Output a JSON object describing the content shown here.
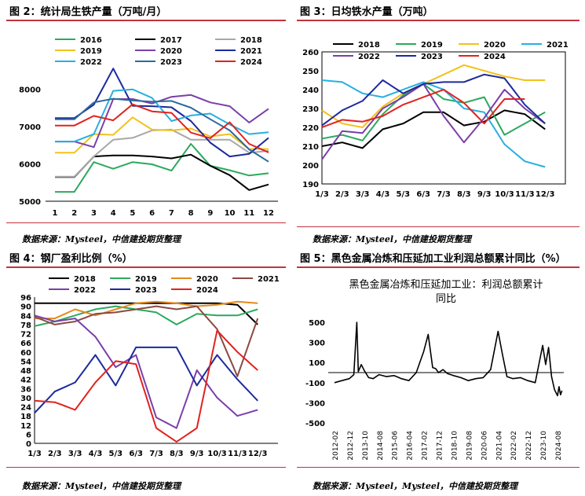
{
  "panels": {
    "p2": {
      "title": "图 2：统计局生铁产量（万吨/月）",
      "source": "数据来源：Mysteel，中信建投期货整理"
    },
    "p3": {
      "title": "图 3：日均铁水产量（万吨）",
      "source": "数据来源：Mysteel，中信建投期货整理"
    },
    "p4": {
      "title": "图 4：钢厂盈利比例（%）",
      "source": "数据来源：Mysteel，中信建投期货整理"
    },
    "p5": {
      "title": "图 5：黑色金属冶炼和压延加工业利润总额累计同比（%）",
      "source": "数据来源：Mysteel，Mysteel，中信建投期货整理"
    }
  },
  "chart_data": [
    {
      "id": "p2",
      "type": "line",
      "x": [
        1,
        2,
        3,
        4,
        5,
        6,
        7,
        8,
        9,
        10,
        11,
        12
      ],
      "ylim": [
        5000,
        8500
      ],
      "yticks": [
        5000,
        6000,
        7000,
        8000
      ],
      "legend_position": "top",
      "series": [
        {
          "name": "2016",
          "color": "#2ca95e",
          "values": [
            5250,
            5250,
            6050,
            5870,
            6050,
            5990,
            5820,
            6540,
            5950,
            5830,
            5690,
            5750
          ]
        },
        {
          "name": "2017",
          "color": "#000000",
          "values": [
            5650,
            5650,
            6200,
            6230,
            6230,
            6200,
            6150,
            6250,
            5950,
            5700,
            5300,
            5450
          ]
        },
        {
          "name": "2018",
          "color": "#a8a8a8",
          "values": [
            5660,
            5660,
            6200,
            6650,
            6700,
            6900,
            6920,
            6650,
            6650,
            6650,
            6300,
            6350
          ]
        },
        {
          "name": "2019",
          "color": "#f2c21b",
          "values": [
            6300,
            6300,
            6800,
            6780,
            7250,
            6920,
            6900,
            6950,
            6740,
            6800,
            6400,
            6400
          ]
        },
        {
          "name": "2020",
          "color": "#7b3fa8",
          "values": [
            6600,
            6600,
            6450,
            7740,
            7740,
            7620,
            7800,
            7850,
            7650,
            7550,
            7110,
            7480
          ]
        },
        {
          "name": "2021",
          "color": "#1c2a9c",
          "values": [
            7230,
            7230,
            7590,
            8560,
            7560,
            7550,
            7520,
            7150,
            6570,
            6200,
            6270,
            6700
          ]
        },
        {
          "name": "2022",
          "color": "#27b0e0",
          "values": [
            6600,
            6600,
            6800,
            7960,
            8000,
            7770,
            7150,
            7300,
            7350,
            7060,
            6800,
            6850
          ]
        },
        {
          "name": "2023",
          "color": "#2b6a9c",
          "values": [
            7200,
            7200,
            7650,
            7750,
            7700,
            7670,
            7690,
            7510,
            7200,
            6900,
            6390,
            6060
          ]
        },
        {
          "name": "2024",
          "color": "#e0231f",
          "values": [
            7030,
            7030,
            7290,
            7170,
            7600,
            7410,
            7370,
            6840,
            6690,
            7120,
            6540,
            6310
          ]
        }
      ]
    },
    {
      "id": "p3",
      "type": "line",
      "categories": [
        "1/3",
        "2/3",
        "3/3",
        "4/3",
        "5/3",
        "6/3",
        "7/3",
        "8/3",
        "9/3",
        "10/3",
        "11/3",
        "12/3"
      ],
      "ylim": [
        190,
        260
      ],
      "yticks": [
        190,
        200,
        210,
        220,
        230,
        240,
        250,
        260
      ],
      "legend_position": "top",
      "series": [
        {
          "name": "2018",
          "color": "#000000",
          "values": [
            210,
            212,
            209,
            219,
            222,
            228,
            228,
            221,
            223,
            229,
            227,
            219
          ]
        },
        {
          "name": "2019",
          "color": "#2ca95e",
          "values": [
            214,
            216,
            213,
            227,
            237,
            243,
            235,
            233,
            236,
            216,
            222,
            228
          ]
        },
        {
          "name": "2020",
          "color": "#f2c21b",
          "values": [
            229,
            222,
            220,
            231,
            238,
            243,
            248,
            253,
            250,
            247,
            245,
            245
          ]
        },
        {
          "name": "2021",
          "color": "#27b0e0",
          "values": [
            245,
            244,
            238,
            236,
            240,
            244,
            240,
            230,
            228,
            211,
            202,
            199
          ]
        },
        {
          "name": "2022",
          "color": "#7b3fa8",
          "values": [
            203,
            218,
            217,
            230,
            236,
            243,
            226,
            212,
            225,
            240,
            230,
            222
          ]
        },
        {
          "name": "2023",
          "color": "#1c2a9c",
          "values": [
            221,
            229,
            234,
            245,
            238,
            243,
            244,
            244,
            248,
            246,
            232,
            222
          ]
        },
        {
          "name": "2024",
          "color": "#e0231f",
          "values": [
            220,
            224,
            223,
            226,
            232,
            236,
            240,
            233,
            222,
            235,
            235,
            null
          ]
        }
      ]
    },
    {
      "id": "p4",
      "type": "line",
      "categories": [
        "1/3",
        "2/3",
        "3/3",
        "4/3",
        "5/3",
        "6/3",
        "7/3",
        "8/3",
        "9/3",
        "10/3",
        "11/3",
        "12/3"
      ],
      "ylim": [
        0,
        96
      ],
      "yticks": [
        0,
        6,
        12,
        18,
        24,
        30,
        36,
        42,
        48,
        54,
        60,
        66,
        72,
        78,
        84,
        90,
        96
      ],
      "legend_position": "top",
      "series": [
        {
          "name": "2018",
          "color": "#000000",
          "values": [
            92,
            92,
            92,
            92,
            92,
            92,
            92,
            92,
            92,
            92,
            91,
            78
          ]
        },
        {
          "name": "2019",
          "color": "#2ca95e",
          "values": [
            77,
            80,
            84,
            88,
            90,
            88,
            86,
            78,
            85,
            84,
            84,
            88
          ]
        },
        {
          "name": "2020",
          "color": "#e38a1c",
          "values": [
            82,
            82,
            88,
            84,
            88,
            92,
            93,
            92,
            90,
            91,
            93,
            92
          ]
        },
        {
          "name": "2021",
          "color": "#8b4a42",
          "values": [
            83,
            78,
            80,
            85,
            86,
            88,
            90,
            88,
            90,
            75,
            44,
            82
          ]
        },
        {
          "name": "2022",
          "color": "#7b3fa8",
          "values": [
            84,
            80,
            82,
            70,
            50,
            58,
            17,
            10,
            48,
            30,
            18,
            22
          ]
        },
        {
          "name": "2023",
          "color": "#1c2a9c",
          "values": [
            20,
            34,
            40,
            58,
            38,
            63,
            63,
            63,
            38,
            58,
            42,
            28
          ]
        },
        {
          "name": "2024",
          "color": "#e0231f",
          "values": [
            28,
            27,
            22,
            40,
            54,
            52,
            10,
            1,
            10,
            74,
            60,
            48
          ]
        }
      ]
    },
    {
      "id": "p5",
      "type": "line",
      "title": "黑色金属冶炼和压延加工业：利润总额累计同比",
      "xticks": [
        "2012-02",
        "2012-12",
        "2013-10",
        "2014-08",
        "2015-06",
        "2016-04",
        "2017-02",
        "2017-12",
        "2018-10",
        "2019-08",
        "2020-06",
        "2021-04",
        "2022-02",
        "2022-12",
        "2023-10",
        "2024-08"
      ],
      "ylim": [
        -500,
        500
      ],
      "yticks": [
        -500,
        -300,
        -100,
        100,
        300,
        500
      ],
      "series": [
        {
          "name": "黑色金属冶炼和压延加工业：利润总额累计同比",
          "color": "#000000",
          "x": [
            0,
            0.5,
            1,
            1.3,
            1.5,
            1.6,
            1.8,
            2,
            2.3,
            2.6,
            3,
            3.5,
            4,
            4.5,
            5,
            5.5,
            6,
            6.3,
            6.6,
            6.8,
            7,
            7.3,
            7.6,
            8,
            8.5,
            9,
            9.5,
            10,
            10.5,
            11,
            11.3,
            11.6,
            12,
            12.5,
            13,
            13.5,
            14,
            14.2,
            14.4,
            14.6,
            14.8,
            15,
            15.1,
            15.2,
            15.3
          ],
          "y": [
            -100,
            -80,
            -60,
            -20,
            550,
            10,
            80,
            20,
            -50,
            -60,
            -20,
            -40,
            -30,
            -60,
            -80,
            0,
            210,
            380,
            50,
            40,
            0,
            30,
            -10,
            -30,
            -50,
            -80,
            -60,
            -50,
            30,
            410,
            180,
            -40,
            -60,
            -50,
            -80,
            -100,
            270,
            80,
            250,
            -40,
            -170,
            -230,
            -140,
            -220,
            -180
          ]
        }
      ]
    }
  ]
}
